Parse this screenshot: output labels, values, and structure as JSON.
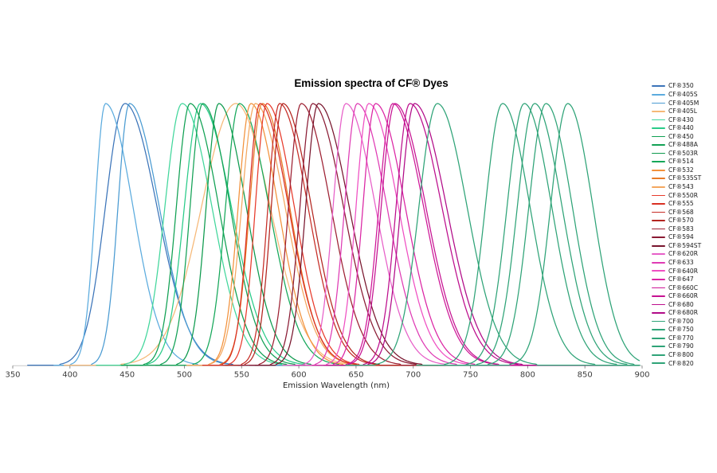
{
  "page": {
    "title": "Emission spectra of CF® Dyes",
    "x_axis_label": "Emission Wavelength (nm)"
  },
  "chart_data": {
    "type": "line",
    "title": "Emission spectra of CF® Dyes",
    "xlabel": "Emission Wavelength (nm)",
    "ylabel": "",
    "xlim": [
      350,
      900
    ],
    "ylim": [
      0,
      1
    ],
    "grid": false,
    "legend_position": "right",
    "x_ticks": [
      350,
      400,
      450,
      500,
      550,
      600,
      650,
      700,
      750,
      800,
      850,
      900
    ],
    "y_meaning": "normalized emission intensity; every spectrum is scaled to the same peak height",
    "curve_model": "asymmetric gaussian: exp(-0.5*((x-em_max)/sigma)^2), sigma_left below peak, sigma_right above peak",
    "style": {
      "background": "#ffffff",
      "axis_line": "#c8c8c8",
      "tick_mark": "#7f7f7f",
      "tick_text": "#3c3c3c",
      "title_text": "#000000"
    },
    "series": [
      {
        "name": "CF®350",
        "color": "#3B74B9",
        "em_max": 448,
        "sigma_left": 17,
        "sigma_right": 28
      },
      {
        "name": "CF®405S",
        "color": "#5BABDE",
        "em_max": 431,
        "sigma_left": 9,
        "sigma_right": 24
      },
      {
        "name": "CF®405M",
        "color": "#4A9BD2",
        "em_max": 452,
        "sigma_left": 10,
        "sigma_right": 26
      },
      {
        "name": "CF®405L",
        "color": "#F6B877",
        "em_max": 545,
        "sigma_left": 30,
        "sigma_right": 30
      },
      {
        "name": "CF®430",
        "color": "#41D69B",
        "em_max": 498,
        "sigma_left": 15,
        "sigma_right": 26
      },
      {
        "name": "CF®440",
        "color": "#29CB88",
        "em_max": 514,
        "sigma_left": 14,
        "sigma_right": 27
      },
      {
        "name": "CF®450",
        "color": "#0FA052",
        "em_max": 505,
        "sigma_left": 12,
        "sigma_right": 25
      },
      {
        "name": "CF®488A",
        "color": "#12A155",
        "em_max": 516,
        "sigma_left": 11,
        "sigma_right": 24
      },
      {
        "name": "CF®503R",
        "color": "#0D9A4D",
        "em_max": 530,
        "sigma_left": 11,
        "sigma_right": 24
      },
      {
        "name": "CF®514",
        "color": "#15A759",
        "em_max": 548,
        "sigma_left": 12,
        "sigma_right": 26
      },
      {
        "name": "CF®532",
        "color": "#F2913B",
        "em_max": 558,
        "sigma_left": 11,
        "sigma_right": 24
      },
      {
        "name": "CF®535ST",
        "color": "#E87B28",
        "em_max": 568,
        "sigma_left": 11,
        "sigma_right": 24
      },
      {
        "name": "CF®543",
        "color": "#F4A75F",
        "em_max": 562,
        "sigma_left": 12,
        "sigma_right": 26
      },
      {
        "name": "CF®550R",
        "color": "#E73A2B",
        "em_max": 572,
        "sigma_left": 10,
        "sigma_right": 24
      },
      {
        "name": "CF®555",
        "color": "#D93023",
        "em_max": 566,
        "sigma_left": 10,
        "sigma_right": 25
      },
      {
        "name": "CF®568",
        "color": "#C62D26",
        "em_max": 583,
        "sigma_left": 10,
        "sigma_right": 25
      },
      {
        "name": "CF®570",
        "color": "#B3251F",
        "em_max": 586,
        "sigma_left": 10,
        "sigma_right": 25
      },
      {
        "name": "CF®583",
        "color": "#9D2032",
        "em_max": 602,
        "sigma_left": 11,
        "sigma_right": 26
      },
      {
        "name": "CF®594",
        "color": "#8A1A33",
        "em_max": 612,
        "sigma_left": 11,
        "sigma_right": 27
      },
      {
        "name": "CF®594ST",
        "color": "#78152D",
        "em_max": 617,
        "sigma_left": 11,
        "sigma_right": 27
      },
      {
        "name": "CF®620R",
        "color": "#E75FC8",
        "em_max": 641,
        "sigma_left": 11,
        "sigma_right": 26
      },
      {
        "name": "CF®633",
        "color": "#DF3BB4",
        "em_max": 651,
        "sigma_left": 11,
        "sigma_right": 26
      },
      {
        "name": "CF®640R",
        "color": "#EF4FC2",
        "em_max": 661,
        "sigma_left": 11,
        "sigma_right": 26
      },
      {
        "name": "CF®647",
        "color": "#DB25A4",
        "em_max": 667,
        "sigma_left": 11,
        "sigma_right": 26
      },
      {
        "name": "CF®660C",
        "color": "#CE1797",
        "em_max": 682,
        "sigma_left": 12,
        "sigma_right": 27
      },
      {
        "name": "CF®660R",
        "color": "#C61292",
        "em_max": 684,
        "sigma_left": 12,
        "sigma_right": 27
      },
      {
        "name": "CF®680",
        "color": "#BD0E8D",
        "em_max": 697,
        "sigma_left": 12,
        "sigma_right": 28
      },
      {
        "name": "CF®680R",
        "color": "#B10B88",
        "em_max": 701,
        "sigma_left": 12,
        "sigma_right": 28
      },
      {
        "name": "CF®700",
        "color": "#2EA377",
        "em_max": 721,
        "sigma_left": 16,
        "sigma_right": 26
      },
      {
        "name": "CF®750",
        "color": "#2EA377",
        "em_max": 778,
        "sigma_left": 15,
        "sigma_right": 24
      },
      {
        "name": "CF®770",
        "color": "#2EA377",
        "em_max": 797,
        "sigma_left": 15,
        "sigma_right": 24
      },
      {
        "name": "CF®790",
        "color": "#2EA377",
        "em_max": 806,
        "sigma_left": 15,
        "sigma_right": 24
      },
      {
        "name": "CF®800",
        "color": "#2EA377",
        "em_max": 816,
        "sigma_left": 15,
        "sigma_right": 23
      },
      {
        "name": "CF®820",
        "color": "#2EA377",
        "em_max": 835,
        "sigma_left": 15,
        "sigma_right": 22
      }
    ]
  }
}
